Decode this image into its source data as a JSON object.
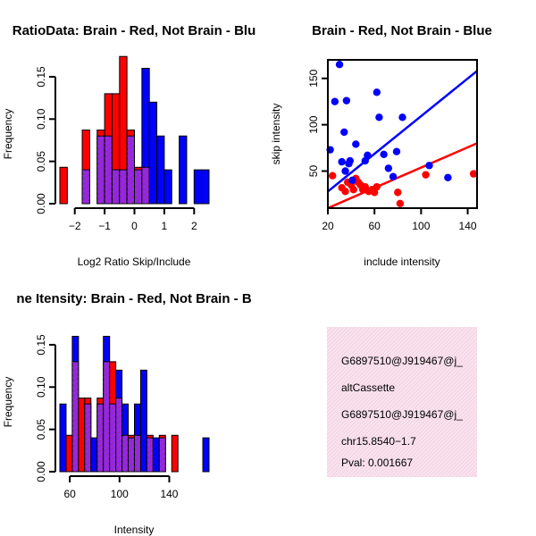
{
  "colors": {
    "red": "#ff0000",
    "blue": "#0000ff",
    "purple": "#a020f0",
    "hatch": "#555555",
    "panel_bg": "#f7d9ea",
    "pval": "#a00000"
  },
  "chart_data": [
    {
      "type": "bar",
      "title": "RatioData: Brain - Red, Not Brain - Blu",
      "xlabel": "Log2 Ratio Skip/Include",
      "ylabel": "Frequency",
      "xlim": [
        -2.5,
        2.5
      ],
      "ylim": [
        0,
        0.17
      ],
      "xticks": [
        -2,
        -1,
        0,
        1,
        2
      ],
      "yticks": [
        0.0,
        0.05,
        0.1,
        0.15
      ],
      "xtick_labels": [
        "−2",
        "−1",
        "0",
        "1",
        "2"
      ],
      "ytick_labels": [
        "0.00",
        "0.05",
        "0.10",
        "0.15"
      ],
      "bin_edges": [
        -2.5,
        -2.25,
        -2.0,
        -1.75,
        -1.5,
        -1.25,
        -1.0,
        -0.75,
        -0.5,
        -0.25,
        0.0,
        0.25,
        0.5,
        0.75,
        1.0,
        1.25,
        1.5,
        1.75,
        2.0,
        2.25,
        2.5
      ],
      "series": [
        {
          "name": "Brain",
          "color": "red",
          "values": [
            0.043,
            0,
            0,
            0.087,
            0,
            0.087,
            0.13,
            0.13,
            0.174,
            0.087,
            0.043,
            0.043,
            0,
            0,
            0,
            0,
            0,
            0,
            0,
            0
          ]
        },
        {
          "name": "Not Brain",
          "color": "blue",
          "values": [
            0,
            0,
            0,
            0.04,
            0,
            0.08,
            0.08,
            0.04,
            0.04,
            0.08,
            0.04,
            0.16,
            0.12,
            0.08,
            0.04,
            0,
            0.08,
            0,
            0.04,
            0.04
          ]
        }
      ]
    },
    {
      "type": "scatter",
      "title": "Brain - Red, Not Brain - Blue",
      "xlabel": "include intensity",
      "ylabel": "skip intensity",
      "xlim": [
        20,
        148
      ],
      "ylim": [
        10,
        170
      ],
      "xticks": [
        20,
        60,
        100,
        140
      ],
      "yticks": [
        50,
        100,
        150
      ],
      "xtick_labels": [
        "20",
        "60",
        "100",
        "140"
      ],
      "ytick_labels": [
        "50",
        "100",
        "150"
      ],
      "series": [
        {
          "name": "Brain",
          "color": "red",
          "points": [
            [
              24,
              45
            ],
            [
              32,
              32
            ],
            [
              35,
              28
            ],
            [
              37,
              38
            ],
            [
              40,
              35
            ],
            [
              42,
              30
            ],
            [
              44,
              42
            ],
            [
              46,
              38
            ],
            [
              48,
              35
            ],
            [
              50,
              30
            ],
            [
              52,
              33
            ],
            [
              55,
              28
            ],
            [
              58,
              30
            ],
            [
              60,
              27
            ],
            [
              62,
              33
            ],
            [
              80,
              27
            ],
            [
              82,
              15
            ],
            [
              104,
              46
            ],
            [
              145,
              47
            ]
          ],
          "fit": [
            [
              20,
              10
            ],
            [
              148,
              80
            ]
          ]
        },
        {
          "name": "Not Brain",
          "color": "blue",
          "points": [
            [
              22,
              73
            ],
            [
              26,
              125
            ],
            [
              30,
              165
            ],
            [
              32,
              60
            ],
            [
              34,
              92
            ],
            [
              35,
              50
            ],
            [
              36,
              126
            ],
            [
              38,
              58
            ],
            [
              39,
              61
            ],
            [
              41,
              40
            ],
            [
              44,
              79
            ],
            [
              52,
              61
            ],
            [
              54,
              67
            ],
            [
              62,
              135
            ],
            [
              64,
              108
            ],
            [
              68,
              68
            ],
            [
              72,
              53
            ],
            [
              76,
              44
            ],
            [
              79,
              71
            ],
            [
              84,
              108
            ],
            [
              107,
              56
            ],
            [
              123,
              43
            ]
          ],
          "fit": [
            [
              20,
              28
            ],
            [
              148,
              158
            ]
          ]
        }
      ]
    },
    {
      "type": "bar",
      "title": "ne Itensity: Brain - Red, Not Brain - B",
      "xlabel": "Intensity",
      "ylabel": "Frequency",
      "xlim": [
        52,
        172
      ],
      "ylim": [
        0,
        0.17
      ],
      "xticks": [
        60,
        100,
        140
      ],
      "yticks": [
        0.0,
        0.05,
        0.1,
        0.15
      ],
      "xtick_labels": [
        "60",
        "100",
        "140"
      ],
      "ytick_labels": [
        "0.00",
        "0.05",
        "0.10",
        "0.15"
      ],
      "bin_edges": [
        52,
        57,
        62,
        67,
        72,
        77,
        82,
        87,
        92,
        97,
        102,
        107,
        112,
        117,
        122,
        127,
        132,
        137,
        142,
        147,
        152,
        157,
        162,
        167,
        172
      ],
      "series": [
        {
          "name": "Brain",
          "color": "red",
          "values": [
            0,
            0.043,
            0.13,
            0.087,
            0.087,
            0,
            0.087,
            0.13,
            0.13,
            0.087,
            0.043,
            0.043,
            0.043,
            0,
            0.043,
            0,
            0.043,
            0,
            0.043,
            0,
            0,
            0,
            0,
            0
          ]
        },
        {
          "name": "Not Brain",
          "color": "blue",
          "values": [
            0.08,
            0,
            0.16,
            0,
            0.08,
            0.04,
            0.08,
            0.16,
            0.08,
            0.12,
            0.08,
            0.04,
            0.08,
            0.12,
            0.04,
            0.04,
            0.04,
            0,
            0,
            0,
            0,
            0,
            0,
            0.04
          ]
        }
      ]
    }
  ],
  "info_panel": {
    "lines": [
      "G6897510@J919467@j_",
      "altCassette",
      "G6897510@J919467@j_",
      "chr15.8540−1.7"
    ],
    "pval": "Pval: 0.001667"
  }
}
